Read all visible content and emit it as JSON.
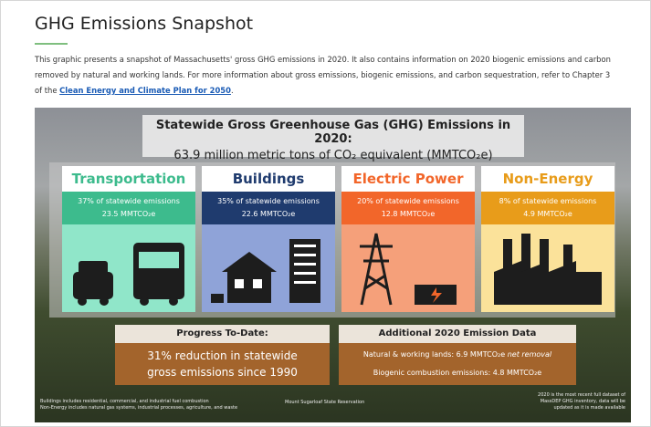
{
  "header": {
    "title": "GHG Emissions Snapshot"
  },
  "intro": {
    "text_before": "This graphic presents a snapshot of Massachusetts' gross GHG emissions in 2020. It also contains information on 2020 biogenic emissions and carbon removed by natural and working lands. For more information about gross emissions, biogenic emissions, and carbon sequestration, refer to Chapter 3 of the",
    "link": "Clean Energy and Climate Plan for 2050",
    "text_after": "."
  },
  "infographic": {
    "title": "Statewide Gross Greenhouse Gas (GHG) Emissions in 2020:",
    "subtitle": "63.9 million metric tons of CO₂ equivalent (MMTCO₂e)",
    "sectors": [
      {
        "name": "Transportation",
        "share": "37% of statewide emissions",
        "amount": "23.5 MMTCO₂e"
      },
      {
        "name": "Buildings",
        "share": "35% of statewide emissions",
        "amount": "22.6 MMTCO₂e"
      },
      {
        "name": "Electric Power",
        "share": "20% of statewide emissions",
        "amount": "12.8 MMTCO₂e"
      },
      {
        "name": "Non-Energy",
        "share": "8% of statewide emissions",
        "amount": "4.9 MMTCO₂e"
      }
    ],
    "progress": {
      "title": "Progress To-Date:",
      "text": "31% reduction in statewide gross emissions since 1990"
    },
    "additional": {
      "title": "Additional 2020 Emission Data",
      "line1": "Natural & working lands: 6.9 MMTCO₂e",
      "line1_italic": "net removal",
      "line2": "Biogenic combustion emissions: 4.8 MMTCO₂e"
    },
    "footnotes": {
      "left": [
        "Buildings includes residential, commercial, and industrial fuel combustion",
        "Non-Energy includes natural gas systems, industrial processes, agriculture, and waste"
      ],
      "center": "Mount Sugarloaf State Reservation",
      "right": [
        "2020 is the most recent full dataset of",
        "MassDEP GHG inventory, data will be",
        "updated as it is made available"
      ]
    }
  }
}
